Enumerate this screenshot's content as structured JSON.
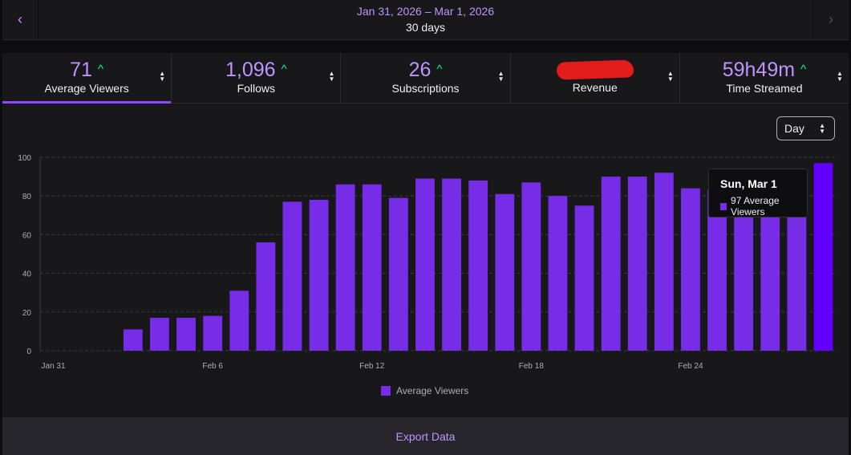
{
  "header": {
    "prev_icon": "chevron-left-icon",
    "next_icon": "chevron-right-icon",
    "date_range": "Jan 31, 2026 – Mar 1, 2026",
    "duration": "30 days"
  },
  "colors": {
    "accent": "#bf94ff",
    "bar": "#772ce8",
    "bar_highlight": "#6200ff",
    "up": "#00f593"
  },
  "metrics": [
    {
      "value": "71",
      "label": "Average Viewers",
      "trend": "^"
    },
    {
      "value": "1,096",
      "label": "Follows",
      "trend": "^"
    },
    {
      "value": "26",
      "label": "Subscriptions",
      "trend": "^"
    },
    {
      "value": "",
      "label": "Revenue",
      "trend": ""
    },
    {
      "value": "59h49m",
      "label": "Time Streamed",
      "trend": "^"
    }
  ],
  "granularity": {
    "selected": "Day"
  },
  "tooltip": {
    "date": "Sun, Mar 1",
    "text": "97 Average Viewers"
  },
  "chart_data": {
    "type": "bar",
    "title": "",
    "categories": [
      "Jan 31",
      "Feb 1",
      "Feb 2",
      "Feb 3",
      "Feb 4",
      "Feb 5",
      "Feb 6",
      "Feb 7",
      "Feb 8",
      "Feb 9",
      "Feb 10",
      "Feb 11",
      "Feb 12",
      "Feb 13",
      "Feb 14",
      "Feb 15",
      "Feb 16",
      "Feb 17",
      "Feb 18",
      "Feb 19",
      "Feb 20",
      "Feb 21",
      "Feb 22",
      "Feb 23",
      "Feb 24",
      "Feb 25",
      "Feb 26",
      "Feb 27",
      "Feb 28",
      "Mar 1"
    ],
    "tick_labels": [
      "Jan 31",
      "Feb 6",
      "Feb 12",
      "Feb 18",
      "Feb 24"
    ],
    "series": [
      {
        "name": "Average Viewers",
        "values": [
          0,
          0,
          0,
          11,
          17,
          17,
          18,
          31,
          56,
          77,
          78,
          86,
          86,
          79,
          89,
          89,
          88,
          81,
          87,
          80,
          75,
          90,
          90,
          92,
          84,
          83,
          83,
          83,
          83,
          97
        ]
      }
    ],
    "yticks": [
      "0",
      "20",
      "40",
      "60",
      "80",
      "100"
    ],
    "ylim": [
      0,
      100
    ],
    "highlight_index": 29,
    "xlabel": "",
    "ylabel": ""
  },
  "legend": {
    "label": "Average Viewers"
  },
  "export": {
    "label": "Export Data"
  }
}
